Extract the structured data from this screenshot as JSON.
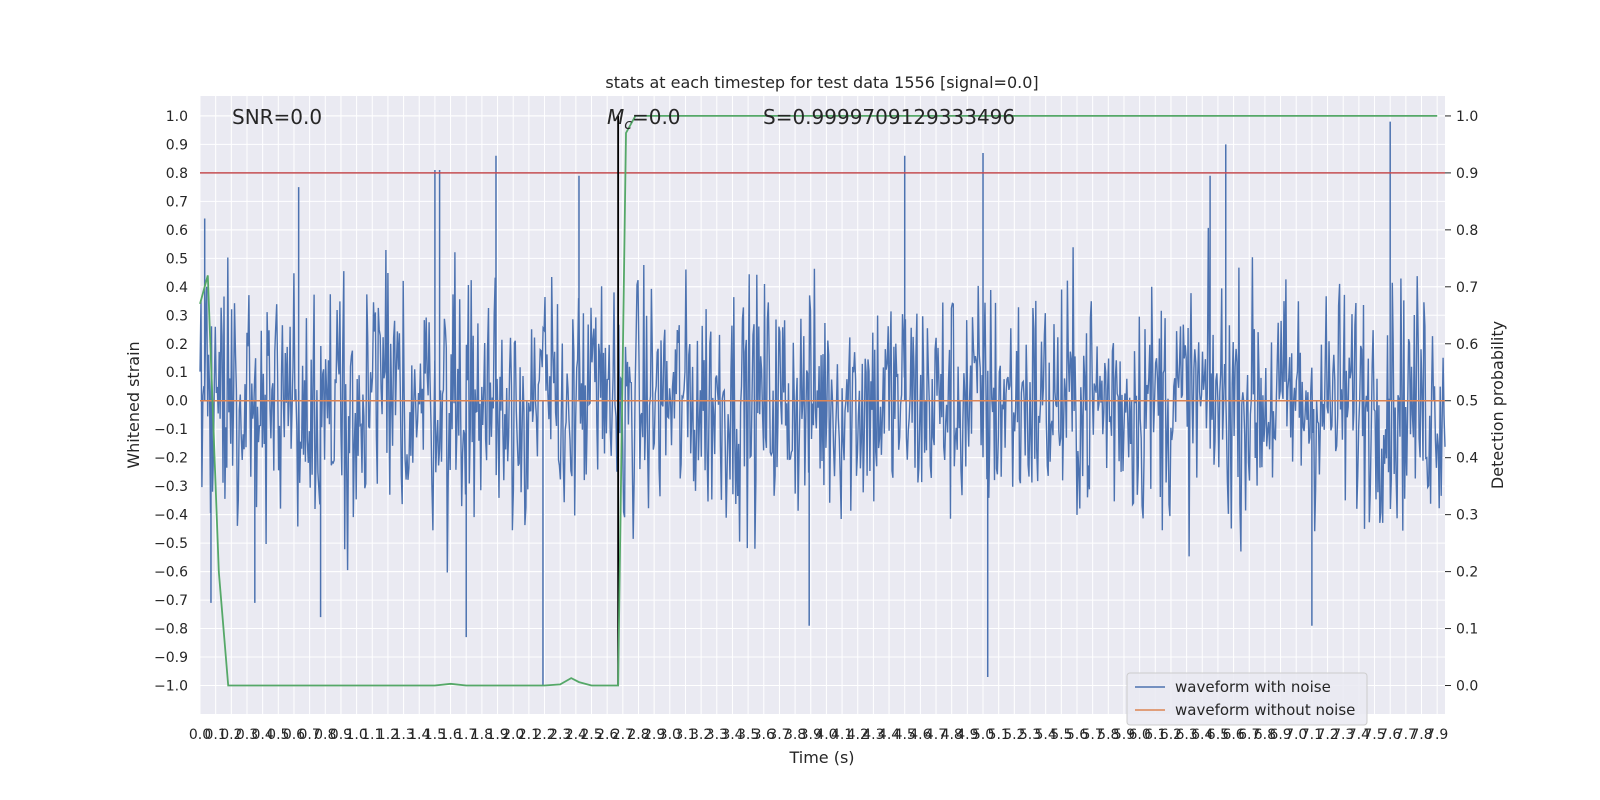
{
  "chart_data": {
    "type": "line",
    "title": "stats at each timestep for test data 1556 [signal=0.0]",
    "xlabel": "Time (s)",
    "ylabel": "Whitened strain",
    "y2label": "Detection probability",
    "xlim": [
      0.0,
      7.95
    ],
    "ylim": [
      -1.1,
      1.07
    ],
    "y2lim": [
      -0.05,
      1.035
    ],
    "x_tick_labels": [
      "0.0",
      "0.1",
      "0.2",
      "0.3",
      "0.4",
      "0.5",
      "0.6",
      "0.7",
      "0.8",
      "0.9",
      "1.0",
      "1.1",
      "1.2",
      "1.3",
      "1.4",
      "1.5",
      "1.6",
      "1.7",
      "1.8",
      "1.9",
      "2.0",
      "2.1",
      "2.2",
      "2.3",
      "2.4",
      "2.5",
      "2.6",
      "2.7",
      "2.8",
      "2.9",
      "3.0",
      "3.1",
      "3.2",
      "3.3",
      "3.4",
      "3.5",
      "3.6",
      "3.7",
      "3.8",
      "3.9",
      "4.0",
      "4.1",
      "4.2",
      "4.3",
      "4.4",
      "4.5",
      "4.6",
      "4.7",
      "4.8",
      "4.9",
      "5.0",
      "5.1",
      "5.2",
      "5.3",
      "5.4",
      "5.5",
      "5.6",
      "5.7",
      "5.8",
      "5.9",
      "6.0",
      "6.1",
      "6.2",
      "6.3",
      "6.4",
      "6.5",
      "6.6",
      "6.7",
      "6.8",
      "6.9",
      "7.0",
      "7.1",
      "7.2",
      "7.3",
      "7.4",
      "7.5",
      "7.6",
      "7.7",
      "7.8",
      "7.9"
    ],
    "y_tick_labels": [
      "1.0",
      "0.9",
      "0.8",
      "0.7",
      "0.6",
      "0.5",
      "0.4",
      "0.3",
      "0.2",
      "0.1",
      "0.0",
      "−0.1",
      "−0.2",
      "−0.3",
      "−0.4",
      "−0.5",
      "−0.6",
      "−0.7",
      "−0.8",
      "−0.9",
      "−1.0"
    ],
    "y2_tick_labels": [
      "1.0",
      "0.9",
      "0.8",
      "0.7",
      "0.6",
      "0.5",
      "0.4",
      "0.3",
      "0.2",
      "0.1",
      "0.0"
    ],
    "annotations": {
      "snr": "SNR=0.0",
      "mc_symbol": "M",
      "mc_subscript": "c",
      "mc_value": "=0.0",
      "s": "S=0.9999709129333496"
    },
    "threshold_y2": 0.9,
    "marker_x": 2.67,
    "series": [
      {
        "name": "waveform with noise",
        "color": "#4c72b0",
        "style": "dense noise trace",
        "approx_envelope": [
          -0.55,
          0.55
        ],
        "peaks": [
          {
            "x": 0.03,
            "y": 0.64
          },
          {
            "x": 0.07,
            "y": -0.71
          },
          {
            "x": 0.35,
            "y": -0.71
          },
          {
            "x": 0.63,
            "y": 0.75
          },
          {
            "x": 0.77,
            "y": -0.76
          },
          {
            "x": 1.5,
            "y": 0.81
          },
          {
            "x": 1.53,
            "y": 0.81
          },
          {
            "x": 1.7,
            "y": -0.83
          },
          {
            "x": 1.89,
            "y": 0.86
          },
          {
            "x": 2.19,
            "y": -1.0
          },
          {
            "x": 2.42,
            "y": 0.79
          },
          {
            "x": 3.89,
            "y": -0.79
          },
          {
            "x": 4.5,
            "y": 0.86
          },
          {
            "x": 5.0,
            "y": 0.87
          },
          {
            "x": 5.03,
            "y": -0.97
          },
          {
            "x": 6.45,
            "y": 0.79
          },
          {
            "x": 6.55,
            "y": 0.9
          },
          {
            "x": 7.1,
            "y": -0.79
          },
          {
            "x": 7.6,
            "y": 0.98
          }
        ]
      },
      {
        "name": "waveform without noise",
        "color": "#dd8452",
        "x": [
          0.0,
          7.95
        ],
        "y": [
          0.0,
          0.0
        ]
      },
      {
        "name": "threshold",
        "color": "#c44e52",
        "axis": "right",
        "x": [
          0.0,
          7.95
        ],
        "y": [
          0.9,
          0.9
        ]
      },
      {
        "name": "detection probability",
        "color": "#55a868",
        "axis": "right",
        "x": [
          0.0,
          0.05,
          0.12,
          0.18,
          0.25,
          1.5,
          1.6,
          1.7,
          1.8,
          2.2,
          2.3,
          2.37,
          2.42,
          2.5,
          2.6,
          2.67,
          2.72,
          2.78,
          7.9
        ],
        "y": [
          0.67,
          0.72,
          0.2,
          0.0,
          0.0,
          0.0,
          0.003,
          0.0,
          0.0,
          0.0,
          0.002,
          0.013,
          0.006,
          0.0,
          0.0,
          0.0,
          0.97,
          1.0,
          1.0
        ]
      }
    ],
    "legend": {
      "position": "lower-right",
      "entries": [
        {
          "label": "waveform with noise",
          "color": "#4c72b0"
        },
        {
          "label": "waveform without noise",
          "color": "#dd8452"
        }
      ]
    },
    "grid": true
  }
}
